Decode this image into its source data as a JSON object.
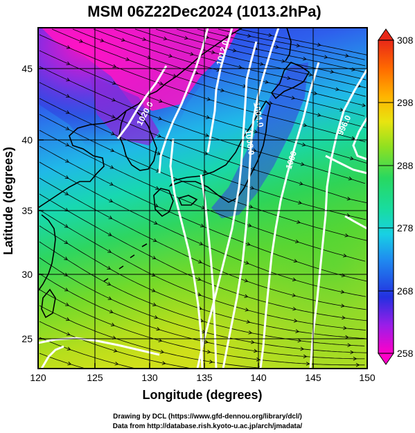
{
  "title": "MSM 06Z22Dec2024 (1013.2hPa)",
  "xlabel": "Longitude (degrees)",
  "ylabel": "Latitude  (degrees)",
  "x_ticks": [
    "120",
    "125",
    "130",
    "135",
    "140",
    "145",
    "150"
  ],
  "y_ticks": [
    "25",
    "30",
    "35",
    "40",
    "45"
  ],
  "colorbar": {
    "ticks": [
      "258",
      "268",
      "278",
      "288",
      "298",
      "308"
    ],
    "min": 258,
    "max": 308,
    "colors": [
      "#ff00c8",
      "#9a1ee8",
      "#2330e0",
      "#1f8cf0",
      "#18d0e4",
      "#18dca0",
      "#28d860",
      "#90e020",
      "#e8e410",
      "#ffb400",
      "#ff6a00",
      "#e82818"
    ]
  },
  "contour_labels": [
    "1012.0",
    "1020.0",
    "1004.0",
    "1008.0",
    "1000",
    "996.0"
  ],
  "credits": {
    "line1": "Drawing by DCL (https://www.gfd-dennou.org/library/dcl/)",
    "line2": "Data from http://database.rish.kyoto-u.ac.jp/arch/jmadata/"
  },
  "map": {
    "lon_range": [
      120,
      150
    ],
    "lat_range": [
      22.5,
      47.5
    ],
    "colors": {
      "field_magenta": "#ff10c0",
      "field_purple": "#8c22d8",
      "field_blue": "#2a38e0",
      "field_cyan": "#1cc8e8",
      "field_teal": "#18d8a8",
      "field_green": "#30d458",
      "field_lime": "#8cdc24",
      "field_yellow": "#d8e018",
      "isobar": "#ffffff",
      "coast": "#000000",
      "streamline": "#000000"
    }
  }
}
